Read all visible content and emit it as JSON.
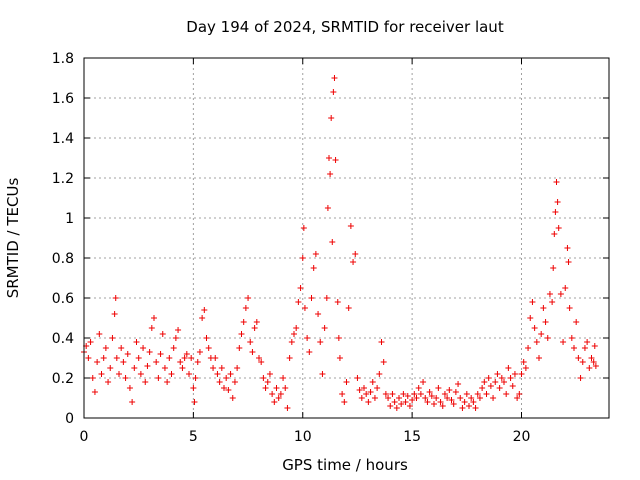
{
  "chart_data": {
    "type": "scatter",
    "title": "Day 194 of 2024, SRMTID for receiver laut",
    "xlabel": "GPS time / hours",
    "ylabel": "SRMTID / TECUs",
    "xlim": [
      0,
      24
    ],
    "ylim": [
      0,
      1.8
    ],
    "xticks": [
      0,
      5,
      10,
      15,
      20
    ],
    "xtick_labels": [
      "0",
      "5",
      "10",
      "15",
      "20"
    ],
    "yticks": [
      0,
      0.2,
      0.4,
      0.6,
      0.8,
      1.0,
      1.2,
      1.4,
      1.6,
      1.8
    ],
    "ytick_labels": [
      "0",
      "0.2",
      "0.4",
      "0.6",
      "0.8",
      "1",
      "1.2",
      "1.4",
      "1.6",
      "1.8"
    ],
    "grid": true,
    "marker": "+",
    "color": "#ee0000",
    "series": [
      {
        "name": "SRMTID",
        "points": [
          [
            0.0,
            0.33
          ],
          [
            0.1,
            0.36
          ],
          [
            0.2,
            0.3
          ],
          [
            0.3,
            0.38
          ],
          [
            0.4,
            0.2
          ],
          [
            0.5,
            0.13
          ],
          [
            0.6,
            0.28
          ],
          [
            0.7,
            0.42
          ],
          [
            0.8,
            0.22
          ],
          [
            0.9,
            0.3
          ],
          [
            1.0,
            0.35
          ],
          [
            1.1,
            0.18
          ],
          [
            1.2,
            0.25
          ],
          [
            1.3,
            0.4
          ],
          [
            1.4,
            0.52
          ],
          [
            1.45,
            0.6
          ],
          [
            1.5,
            0.3
          ],
          [
            1.6,
            0.22
          ],
          [
            1.7,
            0.35
          ],
          [
            1.8,
            0.28
          ],
          [
            1.9,
            0.2
          ],
          [
            2.0,
            0.32
          ],
          [
            2.1,
            0.15
          ],
          [
            2.2,
            0.08
          ],
          [
            2.3,
            0.25
          ],
          [
            2.4,
            0.38
          ],
          [
            2.5,
            0.3
          ],
          [
            2.6,
            0.22
          ],
          [
            2.7,
            0.35
          ],
          [
            2.8,
            0.18
          ],
          [
            2.9,
            0.26
          ],
          [
            3.0,
            0.33
          ],
          [
            3.1,
            0.45
          ],
          [
            3.2,
            0.5
          ],
          [
            3.3,
            0.28
          ],
          [
            3.4,
            0.2
          ],
          [
            3.5,
            0.32
          ],
          [
            3.6,
            0.42
          ],
          [
            3.7,
            0.25
          ],
          [
            3.8,
            0.18
          ],
          [
            3.9,
            0.3
          ],
          [
            4.0,
            0.22
          ],
          [
            4.1,
            0.35
          ],
          [
            4.2,
            0.4
          ],
          [
            4.3,
            0.44
          ],
          [
            4.4,
            0.28
          ],
          [
            4.5,
            0.25
          ],
          [
            4.6,
            0.3
          ],
          [
            4.7,
            0.32
          ],
          [
            4.8,
            0.22
          ],
          [
            4.9,
            0.3
          ],
          [
            5.0,
            0.15
          ],
          [
            5.05,
            0.08
          ],
          [
            5.1,
            0.2
          ],
          [
            5.2,
            0.28
          ],
          [
            5.3,
            0.33
          ],
          [
            5.4,
            0.5
          ],
          [
            5.5,
            0.54
          ],
          [
            5.6,
            0.4
          ],
          [
            5.7,
            0.35
          ],
          [
            5.8,
            0.3
          ],
          [
            5.9,
            0.25
          ],
          [
            6.0,
            0.3
          ],
          [
            6.1,
            0.22
          ],
          [
            6.2,
            0.18
          ],
          [
            6.3,
            0.25
          ],
          [
            6.4,
            0.15
          ],
          [
            6.5,
            0.2
          ],
          [
            6.6,
            0.14
          ],
          [
            6.7,
            0.22
          ],
          [
            6.8,
            0.1
          ],
          [
            6.9,
            0.18
          ],
          [
            7.0,
            0.25
          ],
          [
            7.1,
            0.35
          ],
          [
            7.2,
            0.42
          ],
          [
            7.3,
            0.48
          ],
          [
            7.4,
            0.55
          ],
          [
            7.5,
            0.6
          ],
          [
            7.6,
            0.38
          ],
          [
            7.7,
            0.33
          ],
          [
            7.8,
            0.45
          ],
          [
            7.9,
            0.48
          ],
          [
            8.0,
            0.3
          ],
          [
            8.1,
            0.28
          ],
          [
            8.2,
            0.2
          ],
          [
            8.3,
            0.15
          ],
          [
            8.4,
            0.18
          ],
          [
            8.5,
            0.22
          ],
          [
            8.6,
            0.12
          ],
          [
            8.7,
            0.08
          ],
          [
            8.8,
            0.15
          ],
          [
            8.9,
            0.1
          ],
          [
            9.0,
            0.12
          ],
          [
            9.1,
            0.2
          ],
          [
            9.2,
            0.15
          ],
          [
            9.3,
            0.05
          ],
          [
            9.4,
            0.3
          ],
          [
            9.5,
            0.38
          ],
          [
            9.6,
            0.42
          ],
          [
            9.7,
            0.45
          ],
          [
            9.8,
            0.58
          ],
          [
            9.9,
            0.65
          ],
          [
            10.0,
            0.8
          ],
          [
            10.05,
            0.95
          ],
          [
            10.1,
            0.55
          ],
          [
            10.2,
            0.4
          ],
          [
            10.3,
            0.33
          ],
          [
            10.4,
            0.6
          ],
          [
            10.5,
            0.75
          ],
          [
            10.6,
            0.82
          ],
          [
            10.7,
            0.52
          ],
          [
            10.8,
            0.38
          ],
          [
            10.9,
            0.22
          ],
          [
            11.0,
            0.45
          ],
          [
            11.1,
            0.6
          ],
          [
            11.15,
            1.05
          ],
          [
            11.2,
            1.3
          ],
          [
            11.25,
            1.22
          ],
          [
            11.3,
            1.5
          ],
          [
            11.35,
            0.88
          ],
          [
            11.4,
            1.63
          ],
          [
            11.45,
            1.7
          ],
          [
            11.5,
            1.29
          ],
          [
            11.6,
            0.58
          ],
          [
            11.65,
            0.4
          ],
          [
            11.7,
            0.3
          ],
          [
            11.8,
            0.12
          ],
          [
            11.9,
            0.08
          ],
          [
            12.0,
            0.18
          ],
          [
            12.1,
            0.55
          ],
          [
            12.2,
            0.96
          ],
          [
            12.3,
            0.78
          ],
          [
            12.4,
            0.82
          ],
          [
            12.5,
            0.2
          ],
          [
            12.6,
            0.14
          ],
          [
            12.7,
            0.1
          ],
          [
            12.8,
            0.15
          ],
          [
            12.9,
            0.12
          ],
          [
            13.0,
            0.08
          ],
          [
            13.1,
            0.13
          ],
          [
            13.2,
            0.18
          ],
          [
            13.3,
            0.1
          ],
          [
            13.4,
            0.15
          ],
          [
            13.5,
            0.22
          ],
          [
            13.6,
            0.38
          ],
          [
            13.7,
            0.28
          ],
          [
            13.8,
            0.12
          ],
          [
            13.9,
            0.1
          ],
          [
            14.0,
            0.06
          ],
          [
            14.1,
            0.12
          ],
          [
            14.2,
            0.08
          ],
          [
            14.3,
            0.05
          ],
          [
            14.4,
            0.1
          ],
          [
            14.5,
            0.07
          ],
          [
            14.6,
            0.12
          ],
          [
            14.7,
            0.08
          ],
          [
            14.8,
            0.11
          ],
          [
            14.9,
            0.06
          ],
          [
            15.0,
            0.09
          ],
          [
            15.1,
            0.12
          ],
          [
            15.2,
            0.1
          ],
          [
            15.3,
            0.15
          ],
          [
            15.4,
            0.12
          ],
          [
            15.5,
            0.18
          ],
          [
            15.6,
            0.1
          ],
          [
            15.7,
            0.08
          ],
          [
            15.8,
            0.13
          ],
          [
            15.9,
            0.11
          ],
          [
            16.0,
            0.07
          ],
          [
            16.1,
            0.1
          ],
          [
            16.2,
            0.15
          ],
          [
            16.3,
            0.08
          ],
          [
            16.4,
            0.06
          ],
          [
            16.5,
            0.12
          ],
          [
            16.6,
            0.1
          ],
          [
            16.7,
            0.14
          ],
          [
            16.8,
            0.09
          ],
          [
            16.9,
            0.07
          ],
          [
            17.0,
            0.13
          ],
          [
            17.1,
            0.17
          ],
          [
            17.2,
            0.1
          ],
          [
            17.3,
            0.05
          ],
          [
            17.4,
            0.08
          ],
          [
            17.5,
            0.12
          ],
          [
            17.6,
            0.06
          ],
          [
            17.7,
            0.1
          ],
          [
            17.8,
            0.08
          ],
          [
            17.9,
            0.05
          ],
          [
            18.0,
            0.12
          ],
          [
            18.1,
            0.1
          ],
          [
            18.2,
            0.15
          ],
          [
            18.3,
            0.18
          ],
          [
            18.4,
            0.12
          ],
          [
            18.5,
            0.2
          ],
          [
            18.6,
            0.16
          ],
          [
            18.7,
            0.1
          ],
          [
            18.8,
            0.18
          ],
          [
            18.9,
            0.22
          ],
          [
            19.0,
            0.15
          ],
          [
            19.1,
            0.2
          ],
          [
            19.2,
            0.18
          ],
          [
            19.3,
            0.12
          ],
          [
            19.4,
            0.25
          ],
          [
            19.5,
            0.2
          ],
          [
            19.6,
            0.16
          ],
          [
            19.7,
            0.22
          ],
          [
            19.8,
            0.1
          ],
          [
            19.9,
            0.12
          ],
          [
            20.0,
            0.22
          ],
          [
            20.1,
            0.28
          ],
          [
            20.2,
            0.25
          ],
          [
            20.3,
            0.35
          ],
          [
            20.4,
            0.5
          ],
          [
            20.5,
            0.58
          ],
          [
            20.6,
            0.45
          ],
          [
            20.7,
            0.38
          ],
          [
            20.8,
            0.3
          ],
          [
            20.9,
            0.42
          ],
          [
            21.0,
            0.55
          ],
          [
            21.1,
            0.48
          ],
          [
            21.2,
            0.4
          ],
          [
            21.3,
            0.62
          ],
          [
            21.4,
            0.58
          ],
          [
            21.45,
            0.75
          ],
          [
            21.5,
            0.92
          ],
          [
            21.55,
            1.03
          ],
          [
            21.6,
            1.18
          ],
          [
            21.65,
            1.08
          ],
          [
            21.7,
            0.95
          ],
          [
            21.8,
            0.62
          ],
          [
            21.9,
            0.38
          ],
          [
            22.0,
            0.65
          ],
          [
            22.1,
            0.85
          ],
          [
            22.15,
            0.78
          ],
          [
            22.2,
            0.55
          ],
          [
            22.3,
            0.4
          ],
          [
            22.4,
            0.35
          ],
          [
            22.5,
            0.48
          ],
          [
            22.6,
            0.3
          ],
          [
            22.7,
            0.2
          ],
          [
            22.8,
            0.28
          ],
          [
            22.9,
            0.35
          ],
          [
            23.0,
            0.38
          ],
          [
            23.1,
            0.25
          ],
          [
            23.2,
            0.3
          ],
          [
            23.3,
            0.28
          ],
          [
            23.35,
            0.36
          ],
          [
            23.4,
            0.26
          ]
        ]
      }
    ]
  }
}
